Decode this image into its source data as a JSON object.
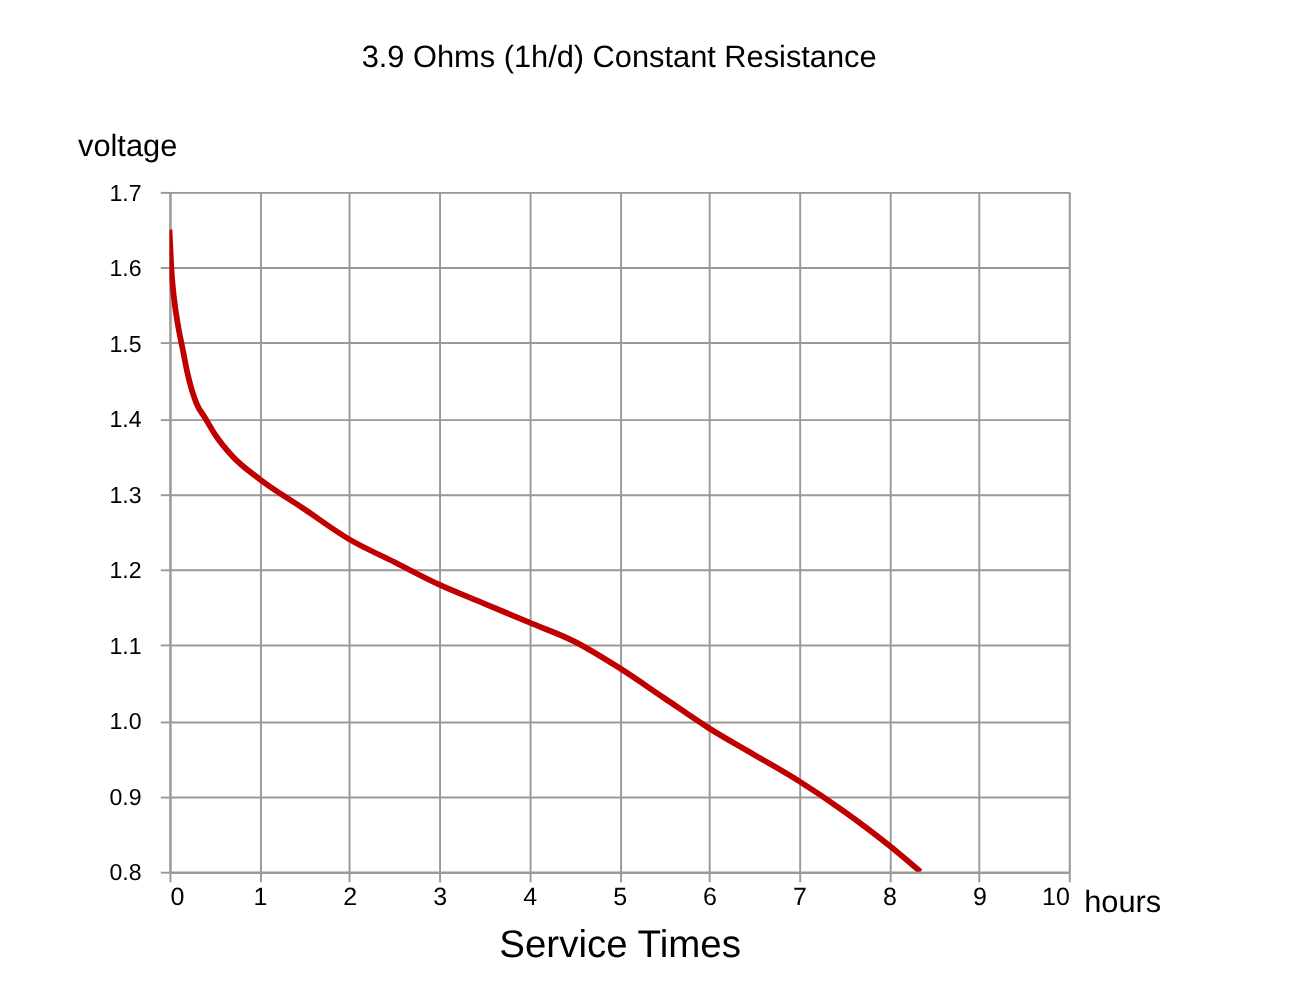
{
  "chart_data": {
    "type": "line",
    "title": "3.9 Ohms (1h/d) Constant Resistance",
    "xlabel": "Service Times",
    "ylabel": "voltage",
    "annotations": [
      "hours"
    ],
    "x": [
      0,
      0.02,
      0.05,
      0.1,
      0.15,
      0.2,
      0.3,
      0.4,
      0.5,
      0.7,
      1,
      1.5,
      2,
      2.5,
      3,
      3.5,
      4,
      4.5,
      5,
      5.5,
      6,
      6.5,
      7,
      7.5,
      8,
      8.35
    ],
    "series": [
      {
        "color": "#c00000",
        "values": [
          1.65,
          1.6,
          1.56,
          1.52,
          1.49,
          1.46,
          1.42,
          1.4,
          1.38,
          1.35,
          1.32,
          1.28,
          1.24,
          1.21,
          1.18,
          1.155,
          1.13,
          1.105,
          1.07,
          1.03,
          0.99,
          0.955,
          0.92,
          0.88,
          0.835,
          0.8
        ]
      }
    ],
    "xlim": [
      0,
      10
    ],
    "xticks": [
      0,
      1,
      2,
      3,
      4,
      5,
      6,
      7,
      8,
      9,
      10
    ],
    "ylim": [
      0.8,
      1.7
    ],
    "yticks": [
      {
        "value": 0.8,
        "label": "0.8"
      },
      {
        "value": 0.9,
        "label": "0.9"
      },
      {
        "value": 1.0,
        "label": "1.0"
      },
      {
        "value": 1.1,
        "label": "1.1"
      },
      {
        "value": 1.2,
        "label": "1.2"
      },
      {
        "value": 1.3,
        "label": "1.3"
      },
      {
        "value": 1.4,
        "label": "1.4"
      },
      {
        "value": 1.5,
        "label": "1.5"
      },
      {
        "value": 1.6,
        "label": "1.6"
      },
      {
        "value": 1.7,
        "label": "1.7"
      }
    ],
    "grid": true,
    "marker": "none",
    "line_style": "solid"
  }
}
